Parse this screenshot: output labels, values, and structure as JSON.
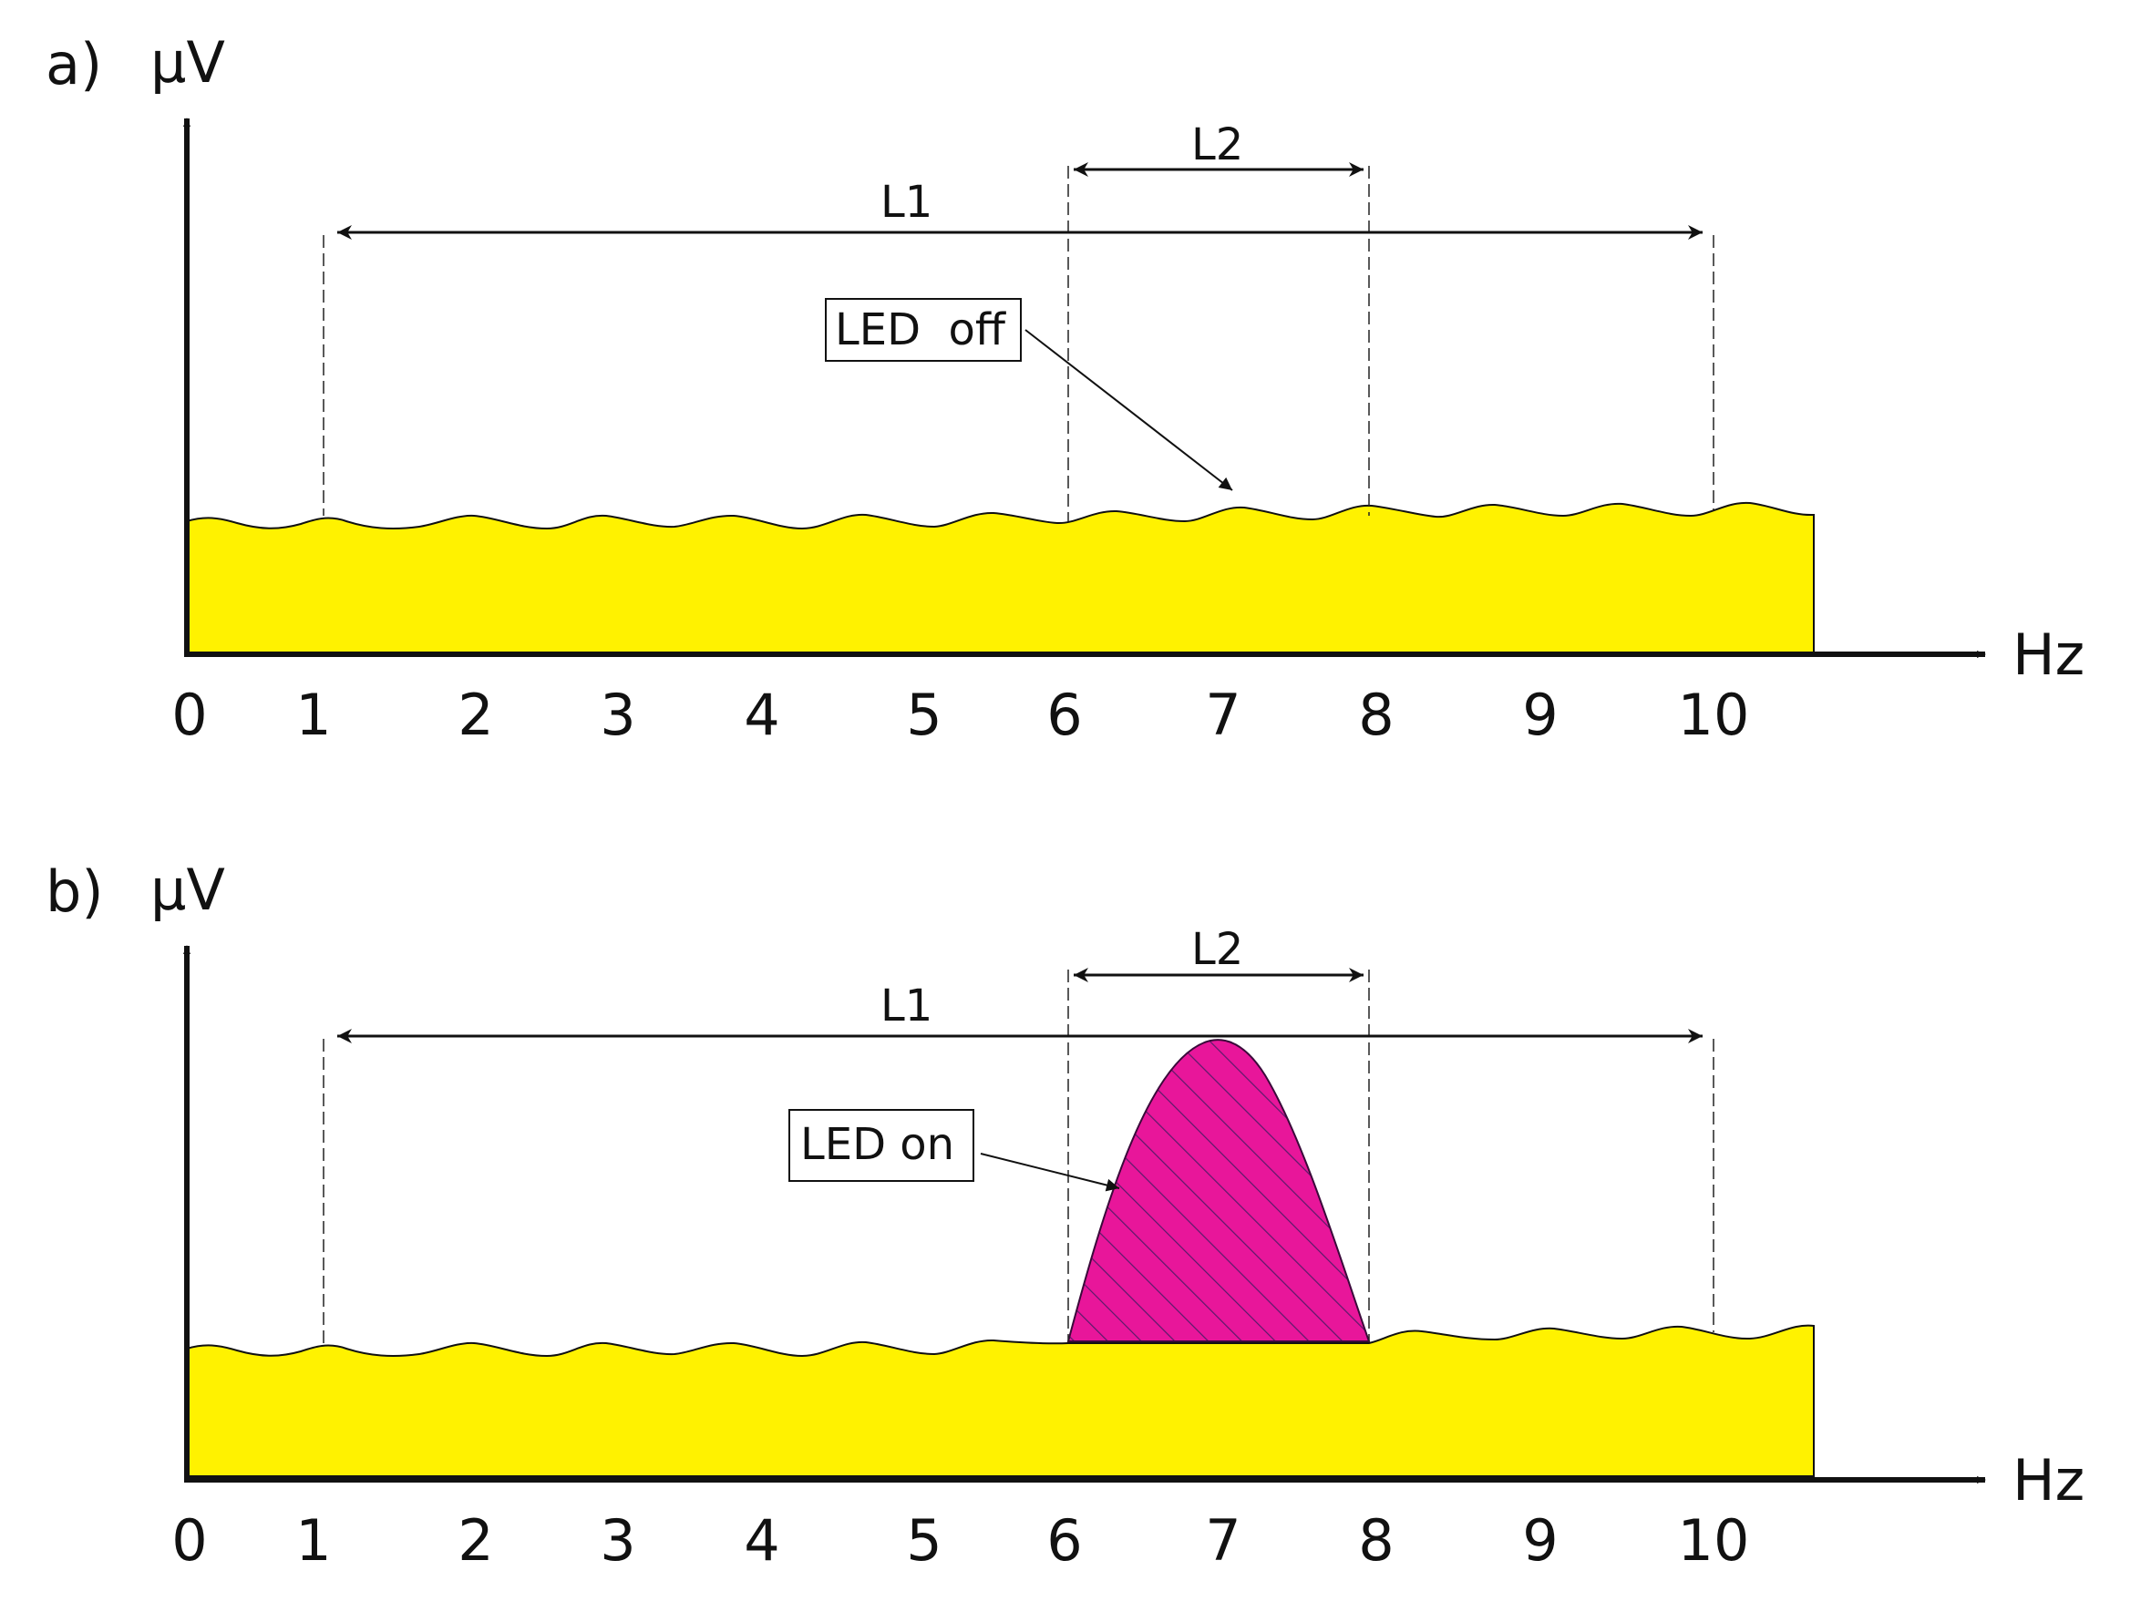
{
  "figure": {
    "colors": {
      "background_noise": "#FFF200",
      "peak": "#E8169A",
      "hatch": "#5A1A6A",
      "axis": "#111111",
      "guide": "#222222"
    },
    "panels": [
      {
        "id": "a",
        "panel_label": "a)",
        "y_unit": "µV",
        "x_unit": "Hz",
        "x_ticks": [
          "0",
          "1",
          "2",
          "3",
          "4",
          "5",
          "6",
          "7",
          "8",
          "9",
          "10"
        ],
        "span_L1": {
          "label": "L1",
          "from": "1",
          "to": "10"
        },
        "span_L2": {
          "label": "L2",
          "from": "6",
          "to": "8"
        },
        "callout": "LED  off",
        "shows_peak": false
      },
      {
        "id": "b",
        "panel_label": "b)",
        "y_unit": "µV",
        "x_unit": "Hz",
        "x_ticks": [
          "0",
          "1",
          "2",
          "3",
          "4",
          "5",
          "6",
          "7",
          "8",
          "9",
          "10"
        ],
        "span_L1": {
          "label": "L1",
          "from": "1",
          "to": "10"
        },
        "span_L2": {
          "label": "L2",
          "from": "6",
          "to": "8"
        },
        "callout": "LED on",
        "shows_peak": true
      }
    ]
  }
}
